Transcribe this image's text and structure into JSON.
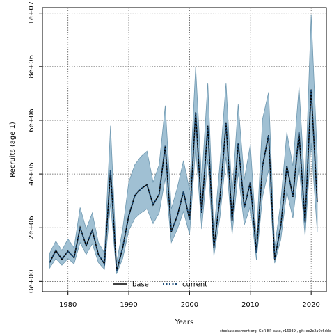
{
  "chart_data": {
    "type": "area",
    "xlabel": "Years",
    "ylabel": "Recruits (age 1)",
    "xlim": [
      1975.8,
      2022.5
    ],
    "ylim": [
      -380000,
      10200000
    ],
    "x_ticks": [
      1980,
      1990,
      2000,
      2010,
      2020
    ],
    "y_ticks": [
      0,
      2000000,
      4000000,
      6000000,
      8000000,
      10000000
    ],
    "y_tick_labels": [
      "0e+00",
      "2e+06",
      "4e+06",
      "6e+06",
      "8e+06",
      "1e+07"
    ],
    "grid": true,
    "legend": {
      "placement": "bottom-center",
      "entries": [
        {
          "label": "base",
          "color": "#000000",
          "dash": "solid"
        },
        {
          "label": "current",
          "color": "#1f4e79",
          "dash": "dotted"
        }
      ]
    },
    "band_color": "#a0c0d3",
    "band_edge_color": "#6f98b0",
    "years": [
      1977,
      1978,
      1979,
      1980,
      1981,
      1982,
      1983,
      1984,
      1985,
      1986,
      1987,
      1988,
      1989,
      1990,
      1991,
      1992,
      1993,
      1994,
      1995,
      1996,
      1997,
      1998,
      1999,
      2000,
      2001,
      2002,
      2003,
      2004,
      2005,
      2006,
      2007,
      2008,
      2009,
      2010,
      2011,
      2012,
      2013,
      2014,
      2015,
      2016,
      2017,
      2018,
      2019,
      2020,
      2021
    ],
    "series": [
      {
        "name": "base",
        "values": [
          700000,
          1150000,
          820000,
          1120000,
          880000,
          2000000,
          1330000,
          1900000,
          1000000,
          650000,
          4150000,
          380000,
          1250000,
          2450000,
          3200000,
          3450000,
          3600000,
          2850000,
          3250000,
          5050000,
          1850000,
          2450000,
          3350000,
          2300000,
          6300000,
          2550000,
          5800000,
          1250000,
          3100000,
          5900000,
          2250000,
          5150000,
          2750000,
          3700000,
          1050000,
          4300000,
          5450000,
          820000,
          2050000,
          4300000,
          3150000,
          5550000,
          2200000,
          7150000,
          2950000
        ]
      },
      {
        "name": "current",
        "values": [
          700000,
          1150000,
          820000,
          1120000,
          880000,
          2000000,
          1330000,
          1900000,
          1000000,
          650000,
          4150000,
          380000,
          1250000,
          2450000,
          3200000,
          3450000,
          3600000,
          2850000,
          3250000,
          5050000,
          1850000,
          2450000,
          3350000,
          2300000,
          6300000,
          2550000,
          5800000,
          1250000,
          3100000,
          5900000,
          2250000,
          5150000,
          2750000,
          3700000,
          1050000,
          4300000,
          5450000,
          820000,
          2050000,
          4300000,
          3150000,
          5550000,
          2200000,
          7150000,
          2950000
        ]
      }
    ],
    "interval_upper": [
      1050000,
      1500000,
      1150000,
      1580000,
      1250000,
      2750000,
      1950000,
      2550000,
      1450000,
      1050000,
      5800000,
      700000,
      1950000,
      3700000,
      4350000,
      4650000,
      4850000,
      3700000,
      4350000,
      6550000,
      2700000,
      3500000,
      4500000,
      3400000,
      8000000,
      3700000,
      7400000,
      1800000,
      4400000,
      7400000,
      3200000,
      6600000,
      3800000,
      5100000,
      1550000,
      6050000,
      7050000,
      1250000,
      2950000,
      5550000,
      4300000,
      7250000,
      3400000,
      9950000,
      4650000
    ],
    "interval_lower": [
      500000,
      850000,
      600000,
      850000,
      650000,
      1450000,
      1000000,
      1400000,
      700000,
      450000,
      2900000,
      280000,
      850000,
      1900000,
      2350000,
      2550000,
      2700000,
      2150000,
      2550000,
      3850000,
      1450000,
      1950000,
      2600000,
      1750000,
      5000000,
      1950000,
      4550000,
      950000,
      2400000,
      4650000,
      1750000,
      4050000,
      2100000,
      2800000,
      800000,
      3150000,
      4150000,
      680000,
      1550000,
      3350000,
      2350000,
      4350000,
      1700000,
      5150000,
      1850000
    ],
    "footer_text": "stockassessment.org, GoR BP base, r16939 , git: ec2c2a0c6dde"
  }
}
